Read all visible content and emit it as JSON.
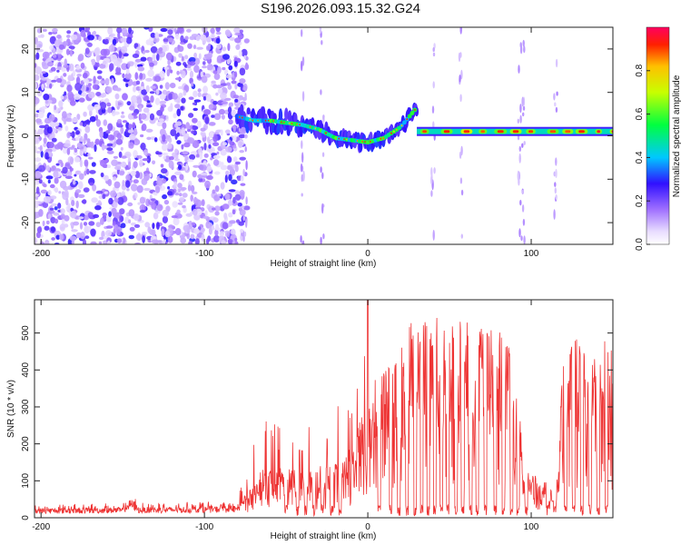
{
  "title": "S196.2026.093.15.32.G24",
  "chart_data": [
    {
      "type": "heatmap",
      "name": "spectrogram",
      "xlabel": "Height of straight line (km)",
      "ylabel": "Frequency (Hz)",
      "xlim": [
        -204,
        150
      ],
      "ylim": [
        -25,
        25
      ],
      "xticks": [
        -200,
        -100,
        0,
        100
      ],
      "xtick_labels": [
        "-200",
        "-100",
        "0",
        "100"
      ],
      "yticks": [
        -20,
        -10,
        0,
        10,
        20
      ],
      "ytick_labels": [
        "-20",
        "-10",
        "0",
        "10",
        "20"
      ],
      "colorbar": {
        "label": "Normalized spectral amplitude",
        "range": [
          0,
          1
        ],
        "ticks": [
          0,
          0.2,
          0.4,
          0.6,
          0.8
        ],
        "tick_labels": [
          "0.0",
          "0.2",
          "0.4",
          "0.6",
          "0.8"
        ]
      },
      "signal_track": {
        "x": [
          -80,
          -70,
          -60,
          -50,
          -40,
          -30,
          -20,
          -10,
          0,
          10,
          20,
          30
        ],
        "freq_hz": [
          4.5,
          3.5,
          3.5,
          3,
          2.5,
          1.5,
          -0.5,
          -1,
          -1.5,
          -0.5,
          2,
          6.5
        ]
      },
      "tone_segment": {
        "x_start": 30,
        "x_end": 150,
        "freq_hz": 1
      },
      "noise_region": {
        "x_start": -204,
        "x_end": -80
      }
    },
    {
      "type": "line",
      "name": "snr",
      "xlabel": "Height of straight line (km)",
      "ylabel": "SNR (10 * v/v)",
      "xlim": [
        -204,
        150
      ],
      "ylim": [
        0,
        590
      ],
      "xticks": [
        -200,
        -100,
        0,
        100
      ],
      "xtick_labels": [
        "-200",
        "-100",
        "0",
        "100"
      ],
      "yticks": [
        0,
        100,
        200,
        300,
        400,
        500
      ],
      "ytick_labels": [
        "0",
        "100",
        "200",
        "300",
        "400",
        "500"
      ],
      "color": "#ee3333",
      "envelope": {
        "x": [
          -204,
          -150,
          -145,
          -140,
          -80,
          -75,
          -65,
          -55,
          -45,
          -35,
          -25,
          -15,
          -10,
          -5,
          0,
          5,
          10,
          20,
          30,
          40,
          60,
          70,
          80,
          90,
          95,
          100,
          110,
          115,
          120,
          130,
          140,
          150
        ],
        "snr_mean": [
          20,
          22,
          40,
          22,
          25,
          55,
          100,
          110,
          100,
          105,
          110,
          120,
          170,
          200,
          240,
          270,
          320,
          380,
          410,
          420,
          410,
          400,
          400,
          380,
          110,
          90,
          80,
          30,
          380,
          380,
          370,
          375
        ],
        "snr_peak": [
          35,
          40,
          65,
          40,
          45,
          130,
          300,
          260,
          230,
          260,
          280,
          320,
          350,
          400,
          590,
          420,
          460,
          510,
          540,
          530,
          530,
          520,
          500,
          460,
          130,
          115,
          100,
          40,
          500,
          500,
          480,
          490
        ]
      },
      "dropouts_x": [
        -50,
        -43,
        -38,
        -33,
        -28,
        -22,
        -17,
        7,
        14,
        19,
        24,
        29,
        33,
        37,
        41,
        45,
        49,
        54,
        58,
        63,
        67,
        72,
        78,
        83,
        88,
        92,
        97,
        110,
        121,
        126,
        131,
        136,
        141,
        146
      ]
    }
  ]
}
